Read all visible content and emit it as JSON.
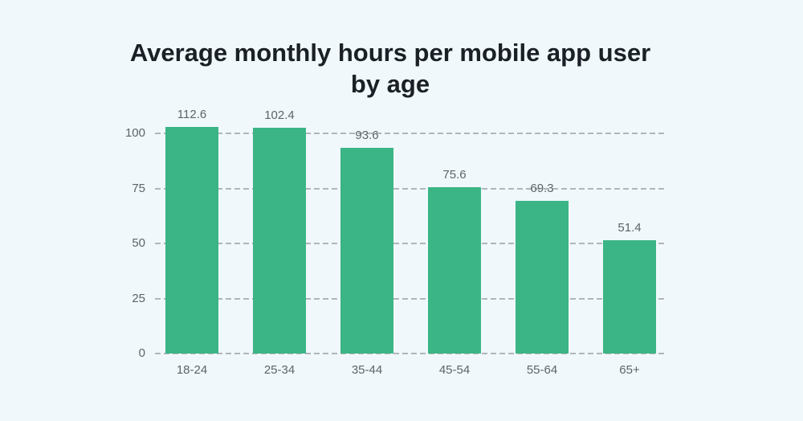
{
  "chart_data": {
    "type": "bar",
    "title": "Average monthly hours per mobile app user by age",
    "categories": [
      "18-24",
      "25-34",
      "35-44",
      "45-54",
      "55-64",
      "65+"
    ],
    "values": [
      112.6,
      102.4,
      93.6,
      75.6,
      69.3,
      51.4
    ],
    "value_labels": [
      "112.6",
      "102.4",
      "93.6",
      "75.6",
      "69.3",
      "51.4"
    ],
    "yticks": [
      0,
      25,
      50,
      75,
      100
    ],
    "ylim": [
      0,
      104
    ],
    "grid": "horizontal-dashed",
    "legend": "none",
    "bar_color": "#3bb586",
    "grid_color": "#b0b6ba",
    "background_color": "#f0f8fb",
    "title_color": "#1a2026",
    "label_color": "#5d646a"
  }
}
